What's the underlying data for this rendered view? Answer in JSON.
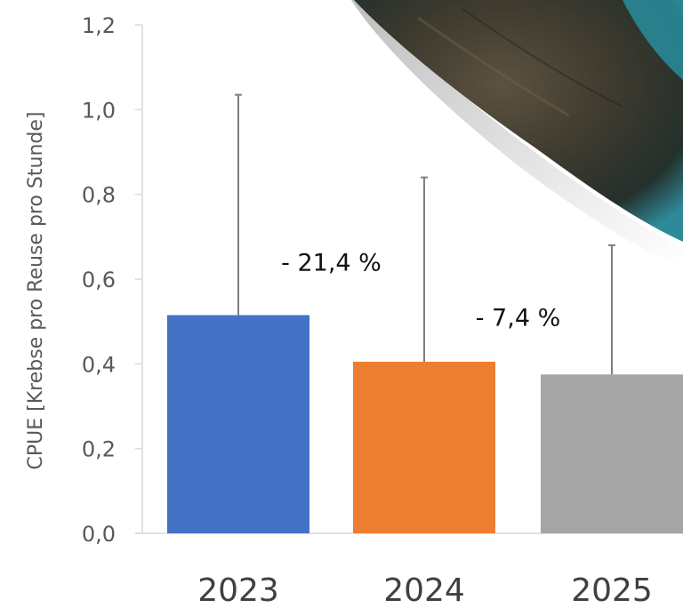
{
  "chart_data": {
    "type": "bar",
    "title": "",
    "xlabel": "",
    "ylabel": "CPUE [Krebse pro Reuse pro Stunde]",
    "categories": [
      "2023",
      "2024",
      "2025"
    ],
    "values": [
      0.515,
      0.405,
      0.375
    ],
    "error_upper": [
      1.035,
      0.84,
      0.68
    ],
    "ylim": [
      0,
      1.2
    ],
    "yticks": [
      0.0,
      0.2,
      0.4,
      0.6,
      0.8,
      1.0,
      1.2
    ],
    "ytick_labels": [
      "0,0",
      "0,2",
      "0,4",
      "0,6",
      "0,8",
      "1,0",
      "1,2"
    ],
    "grid": false,
    "bar_colors": [
      "#4472c4",
      "#ed7d31",
      "#a5a5a5"
    ],
    "annotations": [
      {
        "text": "- 21,4 %",
        "x_between": [
          "2023",
          "2024"
        ],
        "y": 0.62
      },
      {
        "text": "- 7,4 %",
        "x_between": [
          "2024",
          "2025"
        ],
        "y": 0.49
      }
    ]
  },
  "decoration": {
    "image": "crayfish-photo-corner"
  }
}
